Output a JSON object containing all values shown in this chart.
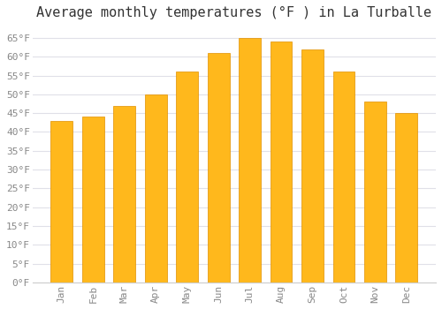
{
  "title": "Average monthly temperatures (°F ) in La Turballe",
  "months": [
    "Jan",
    "Feb",
    "Mar",
    "Apr",
    "May",
    "Jun",
    "Jul",
    "Aug",
    "Sep",
    "Oct",
    "Nov",
    "Dec"
  ],
  "values": [
    43,
    44,
    47,
    50,
    56,
    61,
    65,
    64,
    62,
    56,
    48,
    45
  ],
  "bar_color_top": "#FFB81C",
  "bar_color_bottom": "#FFA500",
  "bar_edge_color": "#E09000",
  "background_color": "#FFFFFF",
  "plot_bg_color": "#FFFFFF",
  "grid_color": "#E0E0E8",
  "ylim": [
    0,
    68
  ],
  "yticks": [
    0,
    5,
    10,
    15,
    20,
    25,
    30,
    35,
    40,
    45,
    50,
    55,
    60,
    65
  ],
  "title_fontsize": 11,
  "tick_fontsize": 8,
  "tick_color": "#888888",
  "font_family": "monospace"
}
